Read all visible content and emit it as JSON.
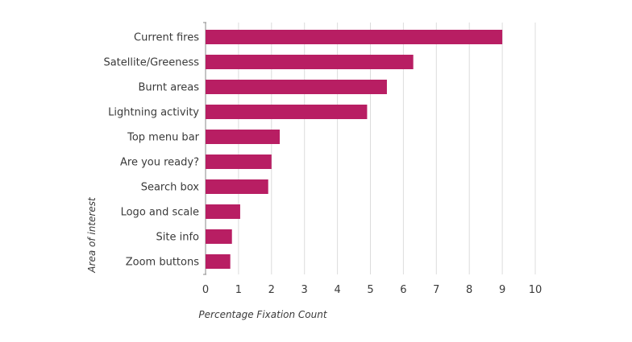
{
  "chart_data": {
    "type": "bar",
    "orientation": "horizontal",
    "categories": [
      "Current fires",
      "Satellite/Greeness",
      "Burnt areas",
      "Lightning activity",
      "Top menu bar",
      "Are you ready?",
      "Search box",
      "Logo and scale",
      "Site info",
      "Zoom buttons"
    ],
    "values": [
      9.0,
      6.3,
      5.5,
      4.9,
      2.25,
      2.0,
      1.9,
      1.05,
      0.8,
      0.75
    ],
    "xlabel": "Percentage Fixation Count",
    "ylabel": "Area of interest",
    "xlim": [
      0,
      10
    ],
    "xticks": [
      "0",
      "1",
      "2",
      "3",
      "4",
      "5",
      "6",
      "7",
      "8",
      "9",
      "10"
    ],
    "grid": "vertical",
    "bar_color": "#b81e63"
  }
}
